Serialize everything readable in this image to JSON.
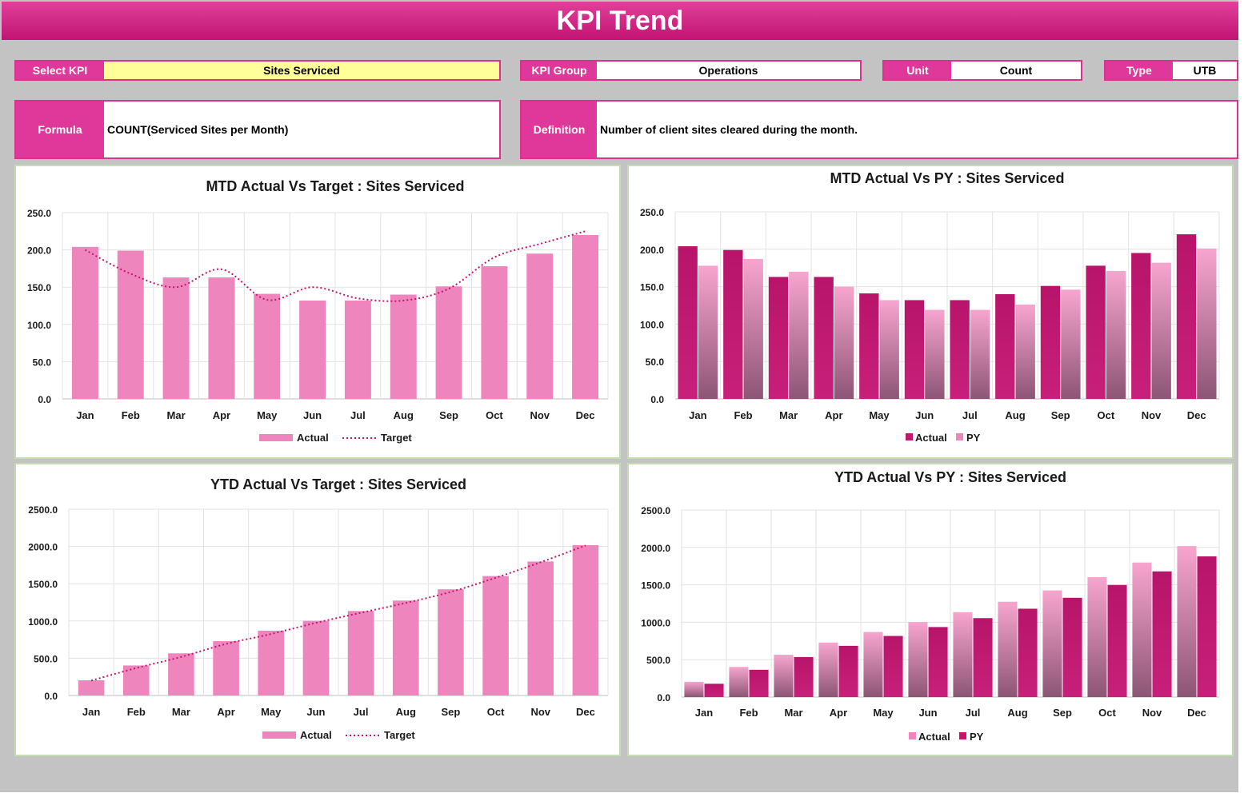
{
  "header": {
    "title": "KPI Trend"
  },
  "fields": {
    "select_kpi": {
      "label": "Select KPI",
      "value": "Sites Serviced"
    },
    "kpi_group": {
      "label": "KPI Group",
      "value": "Operations"
    },
    "unit": {
      "label": "Unit",
      "value": "Count"
    },
    "type": {
      "label": "Type",
      "value": "UTB"
    },
    "formula": {
      "label": "Formula",
      "value": "COUNT(Serviced Sites per Month)"
    },
    "definition": {
      "label": "Definition",
      "value": "Number of client sites cleared during the month."
    }
  },
  "colors": {
    "brand": "#e0389a",
    "actual_light": "#ef85bd",
    "actual_dark": "#c4166e",
    "py_light": "#f07fba",
    "target_line": "#c4166e",
    "select_highlight": "#ffff99"
  },
  "chart_data": [
    {
      "id": "mtd_target",
      "type": "bar",
      "title": "MTD Actual Vs Target : Sites Serviced",
      "categories": [
        "Jan",
        "Feb",
        "Mar",
        "Apr",
        "May",
        "Jun",
        "Jul",
        "Aug",
        "Sep",
        "Oct",
        "Nov",
        "Dec"
      ],
      "series": [
        {
          "name": "Actual",
          "kind": "bar",
          "values": [
            204,
            199,
            163,
            163,
            141,
            132,
            132,
            140,
            151,
            178,
            195,
            220
          ]
        },
        {
          "name": "Target",
          "kind": "line",
          "values": [
            200,
            168,
            150,
            174,
            133,
            150,
            135,
            132,
            148,
            190,
            208,
            225
          ]
        }
      ],
      "ylim": [
        0,
        250
      ],
      "yticks": [
        "0.0",
        "50.0",
        "100.0",
        "150.0",
        "200.0",
        "250.0"
      ],
      "legend": "bottom",
      "grid": true
    },
    {
      "id": "mtd_py",
      "type": "bar",
      "title": "MTD Actual Vs PY : Sites Serviced",
      "categories": [
        "Jan",
        "Feb",
        "Mar",
        "Apr",
        "May",
        "Jun",
        "Jul",
        "Aug",
        "Sep",
        "Oct",
        "Nov",
        "Dec"
      ],
      "series": [
        {
          "name": "Actual",
          "kind": "bar",
          "values": [
            204,
            199,
            163,
            163,
            141,
            132,
            132,
            140,
            151,
            178,
            195,
            220
          ]
        },
        {
          "name": "PY",
          "kind": "bar",
          "values": [
            178,
            187,
            170,
            150,
            132,
            119,
            119,
            126,
            146,
            171,
            182,
            201
          ]
        }
      ],
      "ylim": [
        0,
        250
      ],
      "yticks": [
        "0.0",
        "50.0",
        "100.0",
        "150.0",
        "200.0",
        "250.0"
      ],
      "legend": "bottom",
      "grid": true
    },
    {
      "id": "ytd_target",
      "type": "bar",
      "title": "YTD Actual Vs Target : Sites Serviced",
      "categories": [
        "Jan",
        "Feb",
        "Mar",
        "Apr",
        "May",
        "Jun",
        "Jul",
        "Aug",
        "Sep",
        "Oct",
        "Nov",
        "Dec"
      ],
      "series": [
        {
          "name": "Actual",
          "kind": "bar",
          "values": [
            204,
            403,
            566,
            729,
            870,
            1002,
            1134,
            1274,
            1425,
            1603,
            1798,
            2018
          ]
        },
        {
          "name": "Target",
          "kind": "line",
          "values": [
            200,
            368,
            518,
            692,
            825,
            975,
            1110,
            1242,
            1390,
            1580,
            1788,
            2013
          ]
        }
      ],
      "ylim": [
        0,
        2500
      ],
      "yticks": [
        "0.0",
        "500.0",
        "1000.0",
        "1500.0",
        "2000.0",
        "2500.0"
      ],
      "legend": "bottom",
      "grid": true
    },
    {
      "id": "ytd_py",
      "type": "bar",
      "title": "YTD Actual Vs PY : Sites Serviced",
      "categories": [
        "Jan",
        "Feb",
        "Mar",
        "Apr",
        "May",
        "Jun",
        "Jul",
        "Aug",
        "Sep",
        "Oct",
        "Nov",
        "Dec"
      ],
      "series": [
        {
          "name": "Actual",
          "kind": "bar",
          "values": [
            204,
            403,
            566,
            729,
            870,
            1002,
            1134,
            1274,
            1425,
            1603,
            1798,
            2018
          ]
        },
        {
          "name": "PY",
          "kind": "bar",
          "values": [
            178,
            365,
            535,
            685,
            817,
            936,
            1055,
            1181,
            1327,
            1498,
            1680,
            1881
          ]
        }
      ],
      "ylim": [
        0,
        2500
      ],
      "yticks": [
        "0.0",
        "500.0",
        "1000.0",
        "1500.0",
        "2000.0",
        "2500.0"
      ],
      "legend": "bottom",
      "grid": true
    }
  ]
}
